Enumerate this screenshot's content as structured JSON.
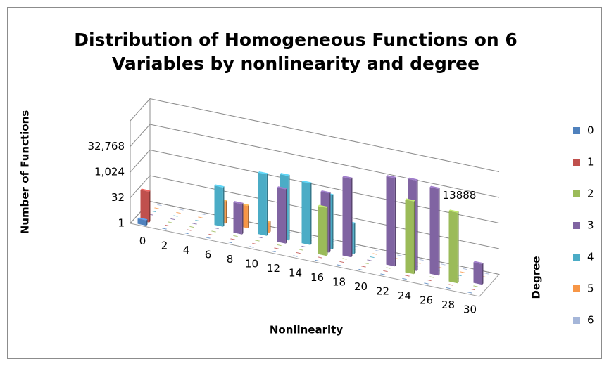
{
  "chart_data": {
    "type": "bar3d",
    "title": "Distribution of Homogeneous Functions on 6 Variables by nonlinearity and degree",
    "y_label": "Number of Functions",
    "x_label": "Nonlinearity",
    "z_label": "Degree",
    "log_scale": true,
    "log_base": 2,
    "ylim": [
      1,
      1048576
    ],
    "yticks": [
      1,
      32,
      {
        "value": 1024,
        "label": "1,024"
      },
      {
        "value": 32768,
        "label": "32,768"
      }
    ],
    "grid": true,
    "legend": "right",
    "categories": [
      "0",
      "2",
      "4",
      "6",
      "8",
      "10",
      "12",
      "14",
      "16",
      "18",
      "20",
      "22",
      "24",
      "26",
      "28",
      "30"
    ],
    "series": [
      {
        "name": "0",
        "color": "#4f81bd",
        "values": [
          2,
          null,
          null,
          null,
          null,
          null,
          null,
          null,
          null,
          null,
          null,
          null,
          null,
          null,
          null,
          null
        ]
      },
      {
        "name": "1",
        "color": "#c0504d",
        "values": [
          64,
          null,
          null,
          null,
          null,
          null,
          null,
          null,
          null,
          null,
          null,
          null,
          null,
          null,
          null,
          null
        ]
      },
      {
        "name": "2",
        "color": "#9bbb59",
        "values": [
          null,
          null,
          null,
          null,
          null,
          null,
          null,
          null,
          651,
          null,
          null,
          null,
          18228,
          null,
          13888,
          null
        ]
      },
      {
        "name": "3",
        "color": "#8064a2",
        "values": [
          null,
          null,
          null,
          null,
          60,
          null,
          1500,
          null,
          3000,
          40000,
          null,
          150000,
          200000,
          120000,
          null,
          16
        ]
      },
      {
        "name": "4",
        "color": "#4bacc6",
        "values": [
          null,
          null,
          null,
          200,
          null,
          4000,
          6000,
          4000,
          1500,
          60,
          null,
          null,
          null,
          null,
          null,
          null
        ]
      },
      {
        "name": "5",
        "color": "#f79646",
        "values": [
          null,
          null,
          null,
          20,
          20,
          4,
          null,
          null,
          null,
          null,
          null,
          null,
          null,
          null,
          null,
          null
        ]
      },
      {
        "name": "6",
        "color": "#a5b6d9",
        "values": [
          null,
          null,
          null,
          null,
          null,
          null,
          null,
          null,
          null,
          null,
          null,
          null,
          null,
          null,
          null,
          null
        ]
      }
    ]
  }
}
